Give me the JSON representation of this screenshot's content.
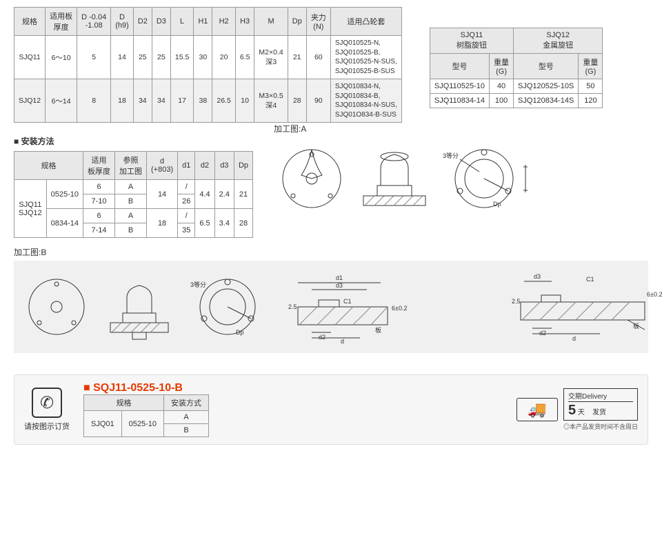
{
  "mainTable": {
    "headers": [
      "规格",
      "适用板\n厚度",
      "D -0.04\n-1.08",
      "D\n(h9)",
      "D2",
      "D3",
      "L",
      "H1",
      "H2",
      "H3",
      "M",
      "Dp",
      "夹力\n(N)",
      "适用凸轮套"
    ],
    "rows": [
      {
        "alt": false,
        "cells": [
          "SJQ11",
          "6～10",
          "5",
          "14",
          "25",
          "25",
          "15.5",
          "30",
          "20",
          "6.5",
          "M2×0.4\n深3",
          "21",
          "60",
          "SJQ010525-N,\nSJQ010525-B,\nSJQ010525-N-SUS,\nSJQ010525-B-SUS"
        ]
      },
      {
        "alt": true,
        "cells": [
          "SJQ12",
          "6～14",
          "8",
          "18",
          "34",
          "34",
          "17",
          "38",
          "26.5",
          "10",
          "M3×0.5\n深4",
          "28",
          "90",
          "SJQ010834-N,\nSJQ010834-B,\nSJQ010834-N-SUS,\nSJQ01O834-B-SUS"
        ]
      }
    ]
  },
  "weightTable": {
    "topHeaders": [
      {
        "label": "SJQ11\n树脂旋钮",
        "span": 2
      },
      {
        "label": "SJQ12\n金属旋钮",
        "span": 2
      }
    ],
    "subHeaders": [
      "型号",
      "重量\n(G)",
      "型号",
      "重量\n(G)"
    ],
    "rows": [
      [
        "SJQ110525-10",
        "40",
        "SJQ120525-10S",
        "50"
      ],
      [
        "SJQ110834-14",
        "100",
        "SJQ120834-14S",
        "120"
      ]
    ]
  },
  "installSection": {
    "title": "安装方法",
    "headers": [
      "规格",
      "",
      "适用\n板厚度",
      "参照\n加工图",
      "d\n(+803)",
      "d1",
      "d2",
      "d3",
      "Dp"
    ],
    "specLabel": "SJQ11\nSJQ12",
    "groups": [
      {
        "code": "0525-10",
        "rows": [
          [
            "6",
            "A",
            "14",
            "/",
            "4.4",
            "2.4",
            "21"
          ],
          [
            "7-10",
            "B",
            "14",
            "26",
            "4.4",
            "2.4",
            "21"
          ]
        ],
        "merge_d": "14",
        "merge_d2": "4.4",
        "merge_d3": "2.4",
        "merge_dp": "21"
      },
      {
        "code": "0834-14",
        "rows": [
          [
            "6",
            "A",
            "18",
            "/",
            "6.5",
            "3.4",
            "28"
          ],
          [
            "7-14",
            "B",
            "18",
            "35",
            "6.5",
            "3.4",
            "28"
          ]
        ],
        "merge_d": "18",
        "merge_d2": "6.5",
        "merge_d3": "3.4",
        "merge_dp": "28"
      }
    ]
  },
  "diagrams": {
    "labelA": "加工图:A",
    "labelB": "加工图:B",
    "eq3": "3等分",
    "dp": "Dp",
    "d": "d",
    "d1": "d1",
    "d2": "d2",
    "d3": "d3",
    "c1": "C1",
    "tol": "6±0.2",
    "h25": "2.5",
    "plate": "板"
  },
  "order": {
    "phoneText": "请按图示订货",
    "title": "SQJ11-0525-10-B",
    "headers": [
      "规格",
      "",
      "安装方式"
    ],
    "rows": [
      [
        "SJQ01",
        "0525-10",
        "A"
      ],
      [
        "",
        "",
        "B"
      ]
    ],
    "deliveryLabel": "交期Delivery",
    "deliveryNum": "5",
    "deliveryUnit": "天",
    "deliveryShip": "发货",
    "deliveryNote": "◎本产品发货时间不含周日"
  }
}
